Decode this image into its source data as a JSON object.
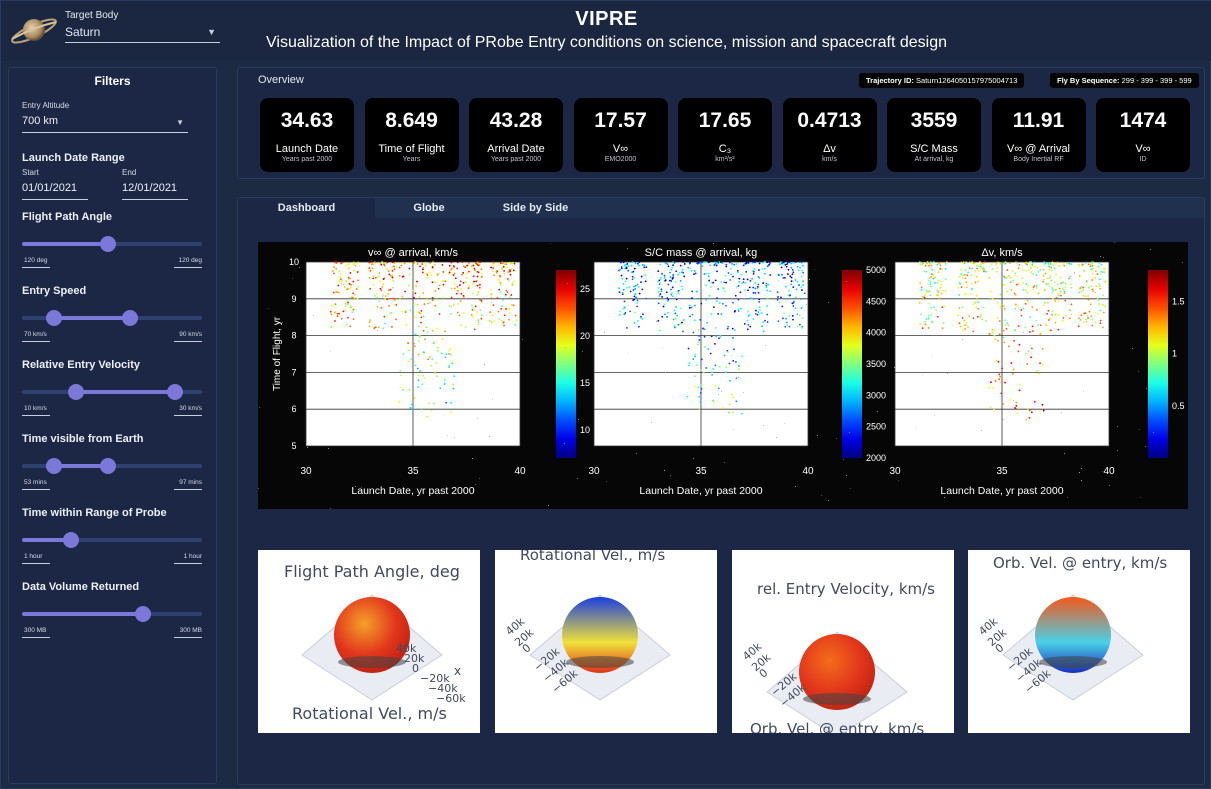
{
  "header": {
    "target_body_label": "Target Body",
    "target_body_value": "Saturn",
    "title": "VIPRE",
    "subtitle": "Visualization of the Impact of PRobe Entry conditions on science, mission and spacecraft design"
  },
  "sidebar": {
    "title": "Filters",
    "entry_altitude": {
      "label": "Entry Altitude",
      "value": "700 km"
    },
    "launch_date_range": {
      "label": "Launch Date Range",
      "start_label": "Start",
      "start_value": "01/01/2021",
      "end_label": "End",
      "end_value": "12/01/2021"
    },
    "sliders": [
      {
        "label": "Flight Path Angle",
        "min": "120 deg",
        "max": "120 deg",
        "value": 0.48
      },
      {
        "label": "Entry Speed",
        "min": "70 km/s",
        "max": "90 km/s",
        "range": [
          0.18,
          0.6
        ]
      },
      {
        "label": "Relative Entry Velocity",
        "min": "10 km/s",
        "max": "30 km/s",
        "range": [
          0.3,
          0.85
        ]
      },
      {
        "label": "Time visible from Earth",
        "min": "53 mins",
        "max": "97 mins",
        "range": [
          0.18,
          0.48
        ]
      },
      {
        "label": "Time within Range of Probe",
        "min": "1 hour",
        "max": "1 hour",
        "value": 0.27
      },
      {
        "label": "Data Volume Returned",
        "min": "300 MB",
        "max": "300 MB",
        "value": 0.67
      }
    ]
  },
  "overview": {
    "title": "Overview",
    "trajectory_label": "Trajectory ID:",
    "trajectory_value": "Saturn1264050157975004713",
    "flyby_label": "Fly By Sequence:",
    "flyby_value": "299 - 399 - 399 - 599",
    "cards": [
      {
        "value": "34.63",
        "label": "Launch Date",
        "sub": "Years past 2000"
      },
      {
        "value": "8.649",
        "label": "Time of Flight",
        "sub": "Years"
      },
      {
        "value": "43.28",
        "label": "Arrival Date",
        "sub": "Years past 2000"
      },
      {
        "value": "17.57",
        "label": "V∞",
        "sub": "EMO2000"
      },
      {
        "value": "17.65",
        "label": "C₃",
        "sub": "km²/s²"
      },
      {
        "value": "0.4713",
        "label": "Δv",
        "sub": "km/s"
      },
      {
        "value": "3559",
        "label": "S/C Mass",
        "sub": "At arrival, kg"
      },
      {
        "value": "11.91",
        "label": "V∞ @ Arrival",
        "sub": "Body Inertial RF"
      },
      {
        "value": "1474",
        "label": "V∞",
        "sub": "ID"
      }
    ]
  },
  "tabs": [
    "Dashboard",
    "Globe",
    "Side by Side"
  ],
  "chart_data": [
    {
      "type": "scatter",
      "title": "v∞ @ arrival, km/s",
      "xlabel": "Launch Date, yr past 2000",
      "ylabel": "Time of Flight, yr",
      "xlim": [
        30,
        40
      ],
      "ylim": [
        5,
        10
      ],
      "x_ticks": [
        "30",
        "35",
        "40"
      ],
      "y_ticks": [
        "5",
        "6",
        "7",
        "8",
        "9",
        "10"
      ],
      "colorbar": {
        "ticks": [
          "10",
          "15",
          "20",
          "25"
        ],
        "range": [
          7,
          27
        ]
      },
      "grid": true,
      "clusters": [
        {
          "x": 31.8,
          "y": 9.6
        },
        {
          "x": 33.6,
          "y": 9.5
        },
        {
          "x": 35.0,
          "y": 8.7
        },
        {
          "x": 36.3,
          "y": 8.5
        },
        {
          "x": 37.6,
          "y": 9.5
        },
        {
          "x": 39.2,
          "y": 9.6
        }
      ]
    },
    {
      "type": "scatter",
      "title": "S/C mass @ arrival, kg",
      "xlabel": "Launch Date, yr past 2000",
      "ylabel": "",
      "xlim": [
        30,
        40
      ],
      "ylim": [
        5,
        10
      ],
      "x_ticks": [
        "30",
        "35",
        "40"
      ],
      "y_ticks": [],
      "colorbar": {
        "ticks": [
          "2000",
          "2500",
          "3000",
          "3500",
          "4000",
          "4500",
          "5000"
        ],
        "range": [
          2000,
          5000
        ]
      },
      "grid": true,
      "clusters": [
        {
          "x": 31.8,
          "y": 9.6
        },
        {
          "x": 33.6,
          "y": 9.5
        },
        {
          "x": 35.0,
          "y": 8.7
        },
        {
          "x": 36.3,
          "y": 8.5
        },
        {
          "x": 37.6,
          "y": 9.5
        },
        {
          "x": 39.2,
          "y": 9.6
        }
      ]
    },
    {
      "type": "scatter",
      "title": "Δv, km/s",
      "xlabel": "Launch Date, yr past 2000",
      "ylabel": "",
      "xlim": [
        30,
        40
      ],
      "ylim": [
        5,
        10
      ],
      "x_ticks": [
        "30",
        "35",
        "40"
      ],
      "y_ticks": [],
      "colorbar": {
        "ticks": [
          "0.5",
          "1",
          "1.5"
        ],
        "range": [
          0,
          1.8
        ]
      },
      "grid": true,
      "clusters": [
        {
          "x": 31.8,
          "y": 9.6
        },
        {
          "x": 33.6,
          "y": 9.5
        },
        {
          "x": 35.0,
          "y": 8.7
        },
        {
          "x": 36.3,
          "y": 8.5
        },
        {
          "x": 37.6,
          "y": 9.5
        },
        {
          "x": 39.2,
          "y": 9.6
        }
      ]
    }
  ],
  "globes": [
    {
      "title": "Flight Path Angle, deg",
      "footer": "Rotational Vel., m/s",
      "axis_labels": [
        "40k",
        "20k",
        "0",
        "−20k",
        "−40k",
        "−60k"
      ],
      "x_label": "x"
    },
    {
      "title": "Rotational Vel., m/s",
      "footer": "",
      "axis_labels": [
        "40k",
        "20k",
        "0",
        "−20k",
        "−40k",
        "−60k"
      ]
    },
    {
      "title": "rel. Entry Velocity, km/s",
      "footer": "Orb. Vel. @ entry, km/s",
      "axis_labels": [
        "40k",
        "20k",
        "0",
        "−20k",
        "−40k"
      ]
    },
    {
      "title": "Orb. Vel. @ entry, km/s",
      "footer": "",
      "axis_labels": [
        "40k",
        "20k",
        "0",
        "−20k",
        "−40k",
        "−60k"
      ]
    }
  ],
  "colors": {
    "background": "#1d2a44",
    "panel": "#1b2744",
    "accent": "#7b78d9",
    "track": "#2f4170",
    "card": "#000000"
  }
}
